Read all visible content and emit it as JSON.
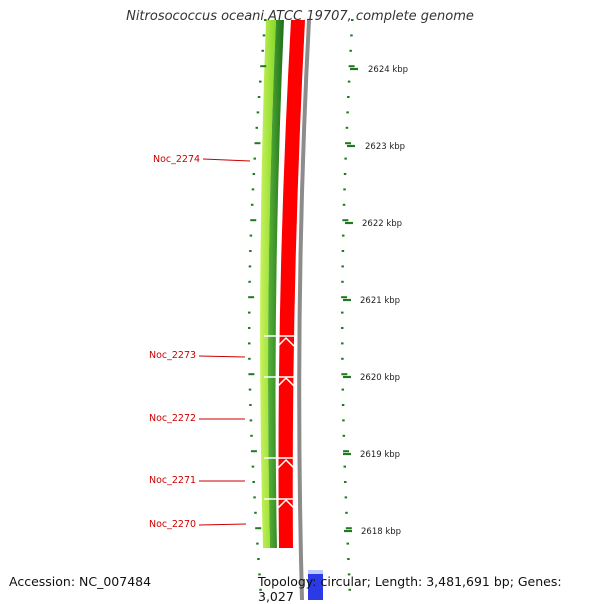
{
  "title": "Nitrosococcus oceani ATCC 19707, complete genome",
  "accession": "Accession: NC_007484",
  "summary": "Topology: circular; Length: 3,481,691 bp; Genes: 3,027",
  "scale_labels": [
    "2624 kbp",
    "2623 kbp",
    "2622 kbp",
    "2621 kbp",
    "2620 kbp",
    "2619 kbp",
    "2618 kbp"
  ],
  "genes": [
    "Noc_2274",
    "Noc_2273",
    "Noc_2272",
    "Noc_2271",
    "Noc_2270"
  ],
  "colors": {
    "gene_label": "#cc0000",
    "forward_cds": "#ff0000",
    "light_green": "#9fe830",
    "dark_green": "#2e8b1e",
    "backbone": "#8c8c8c",
    "tick": "#1f7a1f",
    "highlight_blue": "#2233dd"
  }
}
